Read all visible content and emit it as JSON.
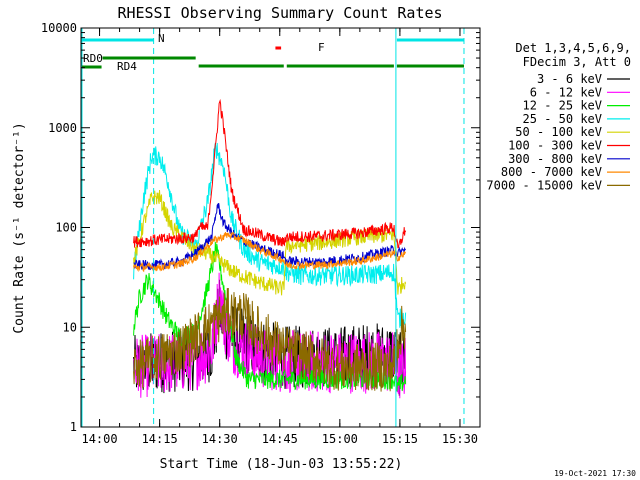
{
  "chart_data": {
    "type": "line",
    "title": "RHESSI Observing Summary Count Rates",
    "xlabel": "Start Time (18-Jun-03 13:55:22)",
    "ylabel": "Count Rate (s⁻¹ detector⁻¹)",
    "xlim": [
      "13:55:22",
      "15:35:00"
    ],
    "ylim": [
      1,
      10000
    ],
    "yscale": "log",
    "x_ticks": [
      "14:00",
      "14:15",
      "14:30",
      "14:45",
      "15:00",
      "15:15",
      "15:30"
    ],
    "y_ticks": [
      "1",
      "10",
      "100",
      "1000",
      "10000"
    ],
    "legend_header": [
      "Det 1,3,4,5,6,9,",
      "FDecim 3, Att 0"
    ],
    "legend_position": "right",
    "footer_date": "19-Oct-2021 17:30",
    "x_minutes_ticks": [
      4.633,
      19.633,
      34.633,
      49.633,
      64.633,
      79.633,
      94.633
    ],
    "flag_labels": {
      "rd0": "RD0",
      "rd4": "RD4",
      "n": "N",
      "f": "F"
    },
    "flag_bars": {
      "n": [
        [
          "13:55:22",
          "14:13:30"
        ],
        [
          "15:14:00",
          "15:31:00"
        ]
      ],
      "rd0": [
        [
          "13:55:22",
          "14:00:30"
        ]
      ],
      "rd4": [
        [
          "14:00:30",
          "14:24:00"
        ],
        [
          "14:24:30",
          "14:46:00"
        ],
        [
          "14:46:30",
          "15:13:30"
        ],
        [
          "15:14:00",
          "15:31:00"
        ]
      ],
      "f": [
        [
          "14:43:40",
          "14:45:20"
        ]
      ]
    },
    "night_lines": [
      "14:13:30",
      "15:31:00"
    ],
    "saa_lines": [
      "13:55:22",
      "15:14:00"
    ],
    "series": [
      {
        "name": "3 - 6 keV",
        "color": "#000000",
        "noise": 0.32,
        "points": [
          [
            "14:08:30",
            4
          ],
          [
            "14:15",
            4.5
          ],
          [
            "14:24",
            4.8
          ],
          [
            "14:28",
            6
          ],
          [
            "14:30",
            15
          ],
          [
            "14:31",
            10
          ],
          [
            "14:34",
            8
          ],
          [
            "14:40",
            6
          ],
          [
            "14:46",
            5
          ],
          [
            "14:50",
            5
          ],
          [
            "15:00",
            5
          ],
          [
            "15:05",
            5.3
          ],
          [
            "15:13:30",
            5.5
          ],
          [
            "15:14:30",
            4
          ],
          [
            "15:16:30",
            5
          ]
        ]
      },
      {
        "name": "6 - 12 keV",
        "color": "#ff00ff",
        "noise": 0.32,
        "points": [
          [
            "14:08:30",
            4
          ],
          [
            "14:15",
            4.2
          ],
          [
            "14:24",
            4.8
          ],
          [
            "14:28",
            6
          ],
          [
            "14:30",
            22
          ],
          [
            "14:31",
            12
          ],
          [
            "14:33",
            7
          ],
          [
            "14:40",
            5
          ],
          [
            "14:46",
            4.5
          ],
          [
            "15:00",
            4.5
          ],
          [
            "15:13:30",
            4.5
          ],
          [
            "15:14:30",
            3.5
          ],
          [
            "15:16:30",
            4
          ]
        ]
      },
      {
        "name": "12 - 25 keV",
        "color": "#00ee00",
        "noise": 0.1,
        "points": [
          [
            "14:08:30",
            10
          ],
          [
            "14:10",
            20
          ],
          [
            "14:12",
            30
          ],
          [
            "14:14",
            22
          ],
          [
            "14:17",
            12
          ],
          [
            "14:20",
            8
          ],
          [
            "14:24",
            9
          ],
          [
            "14:27",
            25
          ],
          [
            "14:29",
            60
          ],
          [
            "14:30",
            42
          ],
          [
            "14:32",
            15
          ],
          [
            "14:34",
            5
          ],
          [
            "14:37",
            3
          ],
          [
            "14:40",
            3
          ],
          [
            "14:46",
            3
          ],
          [
            "14:50",
            3
          ],
          [
            "15:00",
            3
          ],
          [
            "15:13:30",
            3
          ],
          [
            "15:14:30",
            2.5
          ],
          [
            "15:16:30",
            3
          ]
        ]
      },
      {
        "name": "25 - 50 keV",
        "color": "#00eeee",
        "noise": 0.1,
        "points": [
          [
            "14:08:30",
            36
          ],
          [
            "14:11",
            200
          ],
          [
            "14:13",
            520
          ],
          [
            "14:15",
            520
          ],
          [
            "14:17",
            300
          ],
          [
            "14:20",
            90
          ],
          [
            "14:24",
            65
          ],
          [
            "14:27",
            180
          ],
          [
            "14:29",
            650
          ],
          [
            "14:31",
            400
          ],
          [
            "14:33",
            120
          ],
          [
            "14:36",
            60
          ],
          [
            "14:40",
            45
          ],
          [
            "14:46",
            40
          ],
          [
            "14:46:30",
            36
          ],
          [
            "14:50",
            33
          ],
          [
            "15:00",
            33
          ],
          [
            "15:10",
            34
          ],
          [
            "15:13:30",
            36
          ],
          [
            "15:14:30",
            12
          ],
          [
            "15:16:30",
            13
          ]
        ]
      },
      {
        "name": "50 - 100 keV",
        "color": "#d4d400",
        "noise": 0.08,
        "points": [
          [
            "14:08:30",
            45
          ],
          [
            "14:11",
            110
          ],
          [
            "14:13",
            200
          ],
          [
            "14:15",
            200
          ],
          [
            "14:18",
            100
          ],
          [
            "14:24",
            60
          ],
          [
            "14:27",
            55
          ],
          [
            "14:30",
            45
          ],
          [
            "14:34",
            35
          ],
          [
            "14:40",
            28
          ],
          [
            "14:46",
            24
          ],
          [
            "14:46:30",
            65
          ],
          [
            "14:55",
            70
          ],
          [
            "15:05",
            80
          ],
          [
            "15:13:30",
            85
          ],
          [
            "15:14:30",
            24
          ],
          [
            "15:16:30",
            30
          ]
        ]
      },
      {
        "name": "100 - 300 keV",
        "color": "#ff0000",
        "noise": 0.06,
        "points": [
          [
            "14:08:30",
            72
          ],
          [
            "14:15",
            75
          ],
          [
            "14:20",
            78
          ],
          [
            "14:24",
            80
          ],
          [
            "14:24:30",
            98
          ],
          [
            "14:27",
            100
          ],
          [
            "14:28:30",
            400
          ],
          [
            "14:30",
            1900
          ],
          [
            "14:31",
            1000
          ],
          [
            "14:33",
            230
          ],
          [
            "14:36",
            95
          ],
          [
            "14:40",
            85
          ],
          [
            "14:46",
            70
          ],
          [
            "14:46:30",
            80
          ],
          [
            "14:55",
            82
          ],
          [
            "15:05",
            88
          ],
          [
            "15:13:30",
            100
          ],
          [
            "15:14:30",
            60
          ],
          [
            "15:16:30",
            100
          ]
        ]
      },
      {
        "name": "300 - 800 keV",
        "color": "#0000cc",
        "noise": 0.05,
        "points": [
          [
            "14:08:30",
            42
          ],
          [
            "14:15",
            42
          ],
          [
            "14:20",
            45
          ],
          [
            "14:24",
            55
          ],
          [
            "14:28",
            80
          ],
          [
            "14:29:30",
            170
          ],
          [
            "14:31",
            110
          ],
          [
            "14:34",
            80
          ],
          [
            "14:40",
            62
          ],
          [
            "14:46",
            52
          ],
          [
            "14:46:30",
            46
          ],
          [
            "14:55",
            45
          ],
          [
            "15:05",
            50
          ],
          [
            "15:13:30",
            60
          ],
          [
            "15:14:30",
            55
          ],
          [
            "15:16:30",
            60
          ]
        ]
      },
      {
        "name": "800 - 7000 keV",
        "color": "#ff8800",
        "noise": 0.04,
        "points": [
          [
            "14:08:30",
            40
          ],
          [
            "14:15",
            40
          ],
          [
            "14:20",
            43
          ],
          [
            "14:24",
            50
          ],
          [
            "14:28",
            72
          ],
          [
            "14:32",
            85
          ],
          [
            "14:36",
            75
          ],
          [
            "14:40",
            60
          ],
          [
            "14:46",
            47
          ],
          [
            "14:46:30",
            42
          ],
          [
            "14:55",
            42
          ],
          [
            "15:05",
            46
          ],
          [
            "15:13:30",
            55
          ],
          [
            "15:14:30",
            50
          ],
          [
            "15:16:30",
            55
          ]
        ]
      },
      {
        "name": "7000 - 15000 keV",
        "color": "#8b6a00",
        "noise": 0.25,
        "points": [
          [
            "14:08:30",
            4
          ],
          [
            "14:15",
            5
          ],
          [
            "14:20",
            6
          ],
          [
            "14:24",
            8
          ],
          [
            "14:28",
            11
          ],
          [
            "14:32",
            14
          ],
          [
            "14:36",
            13
          ],
          [
            "14:40",
            9
          ],
          [
            "14:46",
            6
          ],
          [
            "15:00",
            4
          ],
          [
            "15:13:30",
            4
          ],
          [
            "15:14:30",
            8
          ],
          [
            "15:16:30",
            11
          ]
        ]
      }
    ]
  }
}
